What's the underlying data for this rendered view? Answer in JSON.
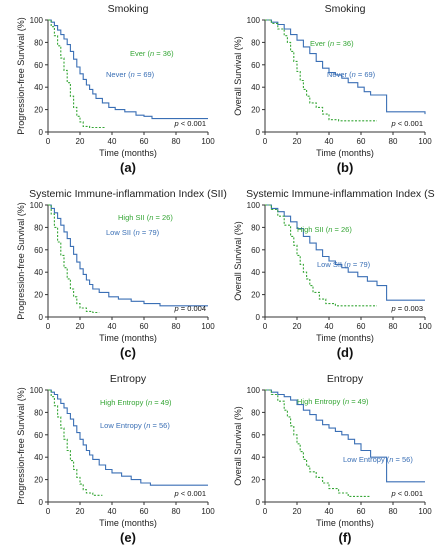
{
  "colors": {
    "blue": "#3a6fb5",
    "green": "#36a636",
    "axis": "#333333"
  },
  "chart_data": [
    {
      "type": "line",
      "panel": "(a)",
      "title": "Smoking",
      "xlabel": "Time (months)",
      "ylabel": "Progression-free Survival (%)",
      "xlim": [
        0,
        100
      ],
      "ylim": [
        0,
        100
      ],
      "xticks": [
        "0",
        "20",
        "40",
        "60",
        "80",
        "100"
      ],
      "yticks": [
        "0",
        "20",
        "40",
        "60",
        "80",
        "100"
      ],
      "p_value": {
        "text_pre": "p",
        "text_post": " < 0.001"
      },
      "series": [
        {
          "label_pre": "Never (",
          "label_italic": "n",
          "label_post": " = 69)",
          "color": "#3a6fb5",
          "dashed": false,
          "x": [
            0,
            2,
            4,
            6,
            8,
            10,
            12,
            14,
            16,
            18,
            20,
            22,
            24,
            26,
            28,
            30,
            34,
            38,
            42,
            48,
            55,
            60,
            65,
            70,
            100
          ],
          "y": [
            100,
            98,
            95,
            91,
            87,
            83,
            78,
            72,
            65,
            58,
            52,
            47,
            42,
            38,
            34,
            30,
            26,
            22,
            20,
            18,
            15,
            14,
            12,
            12,
            12
          ]
        },
        {
          "label_pre": "Ever (",
          "label_italic": "n",
          "label_post": " = 36)",
          "color": "#36a636",
          "dashed": true,
          "x": [
            0,
            2,
            4,
            6,
            8,
            10,
            12,
            14,
            16,
            18,
            20,
            22,
            26,
            36
          ],
          "y": [
            100,
            94,
            86,
            77,
            66,
            55,
            44,
            32,
            22,
            14,
            9,
            5,
            4,
            4
          ]
        }
      ]
    },
    {
      "type": "line",
      "panel": "(b)",
      "title": "Smoking",
      "xlabel": "Time (months)",
      "ylabel": "Overall Survival (%)",
      "xlim": [
        0,
        100
      ],
      "ylim": [
        0,
        100
      ],
      "xticks": [
        "0",
        "20",
        "40",
        "60",
        "80",
        "100"
      ],
      "yticks": [
        "0",
        "20",
        "40",
        "60",
        "80",
        "100"
      ],
      "p_value": {
        "text_pre": "p",
        "text_post": " < 0.001"
      },
      "series": [
        {
          "label_pre": "Never (",
          "label_italic": "n",
          "label_post": " = 69)",
          "color": "#3a6fb5",
          "dashed": false,
          "x": [
            0,
            4,
            8,
            12,
            16,
            20,
            24,
            28,
            32,
            36,
            40,
            44,
            48,
            52,
            58,
            62,
            66,
            70,
            76,
            100
          ],
          "y": [
            100,
            98,
            96,
            92,
            87,
            82,
            76,
            70,
            63,
            57,
            53,
            51,
            48,
            44,
            40,
            36,
            33,
            33,
            18,
            16
          ]
        },
        {
          "label_pre": "Ever (",
          "label_italic": "n",
          "label_post": " = 36)",
          "color": "#36a636",
          "dashed": true,
          "x": [
            0,
            4,
            8,
            12,
            14,
            16,
            18,
            20,
            22,
            24,
            26,
            28,
            32,
            36,
            40,
            46,
            70
          ],
          "y": [
            100,
            97,
            92,
            86,
            80,
            72,
            63,
            54,
            46,
            38,
            32,
            26,
            22,
            16,
            11,
            10,
            10
          ]
        }
      ]
    },
    {
      "type": "line",
      "panel": "(c)",
      "title": "Systemic Immune-inflammation Index (SII)",
      "xlabel": "Time (months)",
      "ylabel": "Progression-free Survival (%)",
      "xlim": [
        0,
        100
      ],
      "ylim": [
        0,
        100
      ],
      "xticks": [
        "0",
        "20",
        "40",
        "60",
        "80",
        "100"
      ],
      "yticks": [
        "0",
        "20",
        "40",
        "60",
        "80",
        "100"
      ],
      "p_value": {
        "text_pre": "p",
        "text_post": " = 0.004"
      },
      "series": [
        {
          "label_pre": "Low SII (",
          "label_italic": "n",
          "label_post": " = 79)",
          "color": "#3a6fb5",
          "dashed": false,
          "x": [
            0,
            2,
            4,
            6,
            8,
            10,
            12,
            14,
            16,
            18,
            20,
            22,
            24,
            26,
            28,
            32,
            38,
            44,
            52,
            60,
            70,
            100
          ],
          "y": [
            100,
            97,
            93,
            88,
            82,
            76,
            70,
            63,
            56,
            49,
            43,
            38,
            33,
            29,
            25,
            22,
            18,
            16,
            14,
            12,
            10,
            10
          ]
        },
        {
          "label_pre": "High SII (",
          "label_italic": "n",
          "label_post": " = 26)",
          "color": "#36a636",
          "dashed": true,
          "x": [
            0,
            2,
            4,
            6,
            8,
            10,
            12,
            14,
            16,
            18,
            20,
            24,
            28,
            32
          ],
          "y": [
            100,
            92,
            80,
            67,
            55,
            44,
            34,
            25,
            18,
            12,
            8,
            5,
            4,
            4
          ]
        }
      ]
    },
    {
      "type": "line",
      "panel": "(d)",
      "title": "Systemic Immune-inflammation Index (SII)",
      "xlabel": "Time (months)",
      "ylabel": "Overall Survival (%)",
      "xlim": [
        0,
        100
      ],
      "ylim": [
        0,
        100
      ],
      "xticks": [
        "0",
        "20",
        "40",
        "60",
        "80",
        "100"
      ],
      "yticks": [
        "0",
        "20",
        "40",
        "60",
        "80",
        "100"
      ],
      "p_value": {
        "text_pre": "p",
        "text_post": " = 0.003"
      },
      "series": [
        {
          "label_pre": "Low SII (",
          "label_italic": "n",
          "label_post": " = 79)",
          "color": "#3a6fb5",
          "dashed": false,
          "x": [
            0,
            4,
            8,
            12,
            16,
            20,
            24,
            28,
            32,
            36,
            40,
            44,
            48,
            52,
            58,
            64,
            70,
            76,
            100
          ],
          "y": [
            100,
            97,
            94,
            90,
            85,
            79,
            72,
            66,
            60,
            54,
            50,
            47,
            44,
            40,
            36,
            32,
            28,
            15,
            15
          ]
        },
        {
          "label_pre": "High SII (",
          "label_italic": "n",
          "label_post": " = 26)",
          "color": "#36a636",
          "dashed": true,
          "x": [
            0,
            4,
            8,
            12,
            16,
            18,
            20,
            22,
            24,
            26,
            28,
            30,
            34,
            38,
            44,
            70
          ],
          "y": [
            100,
            96,
            90,
            82,
            72,
            64,
            55,
            47,
            40,
            34,
            28,
            22,
            16,
            12,
            10,
            10
          ]
        }
      ]
    },
    {
      "type": "line",
      "panel": "(e)",
      "title": "Entropy",
      "xlabel": "Time (months)",
      "ylabel": "Progression-free Survival (%)",
      "xlim": [
        0,
        100
      ],
      "ylim": [
        0,
        100
      ],
      "xticks": [
        "0",
        "20",
        "40",
        "60",
        "80",
        "100"
      ],
      "yticks": [
        "0",
        "20",
        "40",
        "60",
        "80",
        "100"
      ],
      "p_value": {
        "text_pre": "p",
        "text_post": " < 0.001"
      },
      "series": [
        {
          "label_pre": "Low Entropy (",
          "label_italic": "n",
          "label_post": " = 56)",
          "color": "#3a6fb5",
          "dashed": false,
          "x": [
            0,
            2,
            4,
            6,
            8,
            10,
            12,
            14,
            16,
            18,
            20,
            22,
            24,
            26,
            28,
            32,
            36,
            40,
            46,
            52,
            58,
            64,
            70,
            100
          ],
          "y": [
            100,
            98,
            96,
            92,
            88,
            84,
            79,
            74,
            68,
            62,
            56,
            51,
            46,
            42,
            38,
            33,
            29,
            26,
            23,
            20,
            17,
            15,
            15,
            15
          ]
        },
        {
          "label_pre": "High Entropy (",
          "label_italic": "n",
          "label_post": " = 49)",
          "color": "#36a636",
          "dashed": true,
          "x": [
            0,
            2,
            4,
            6,
            8,
            10,
            12,
            14,
            16,
            18,
            20,
            22,
            24,
            28,
            34
          ],
          "y": [
            100,
            94,
            86,
            76,
            66,
            56,
            46,
            37,
            29,
            22,
            16,
            11,
            8,
            6,
            6
          ]
        }
      ]
    },
    {
      "type": "line",
      "panel": "(f)",
      "title": "Entropy",
      "xlabel": "Time (months)",
      "ylabel": "Overall Survival (%)",
      "xlim": [
        0,
        100
      ],
      "ylim": [
        0,
        100
      ],
      "xticks": [
        "0",
        "20",
        "40",
        "60",
        "80",
        "100"
      ],
      "yticks": [
        "0",
        "20",
        "40",
        "60",
        "80",
        "100"
      ],
      "p_value": {
        "text_pre": "p",
        "text_post": " < 0.001"
      },
      "series": [
        {
          "label_pre": "Low Entropy (",
          "label_italic": "n",
          "label_post": " = 56)",
          "color": "#3a6fb5",
          "dashed": false,
          "x": [
            0,
            4,
            8,
            12,
            16,
            20,
            24,
            28,
            32,
            36,
            40,
            44,
            48,
            52,
            56,
            60,
            66,
            72,
            76,
            100
          ],
          "y": [
            100,
            98,
            96,
            94,
            91,
            87,
            82,
            78,
            73,
            69,
            66,
            63,
            60,
            56,
            52,
            46,
            40,
            40,
            18,
            18
          ]
        },
        {
          "label_pre": "High Entropy (",
          "label_italic": "n",
          "label_post": " = 49)",
          "color": "#36a636",
          "dashed": true,
          "x": [
            0,
            4,
            8,
            12,
            14,
            16,
            18,
            20,
            22,
            24,
            26,
            28,
            32,
            36,
            40,
            46,
            52,
            66
          ],
          "y": [
            100,
            96,
            90,
            82,
            76,
            68,
            60,
            52,
            45,
            38,
            32,
            27,
            22,
            17,
            12,
            8,
            5,
            5
          ]
        }
      ]
    }
  ]
}
